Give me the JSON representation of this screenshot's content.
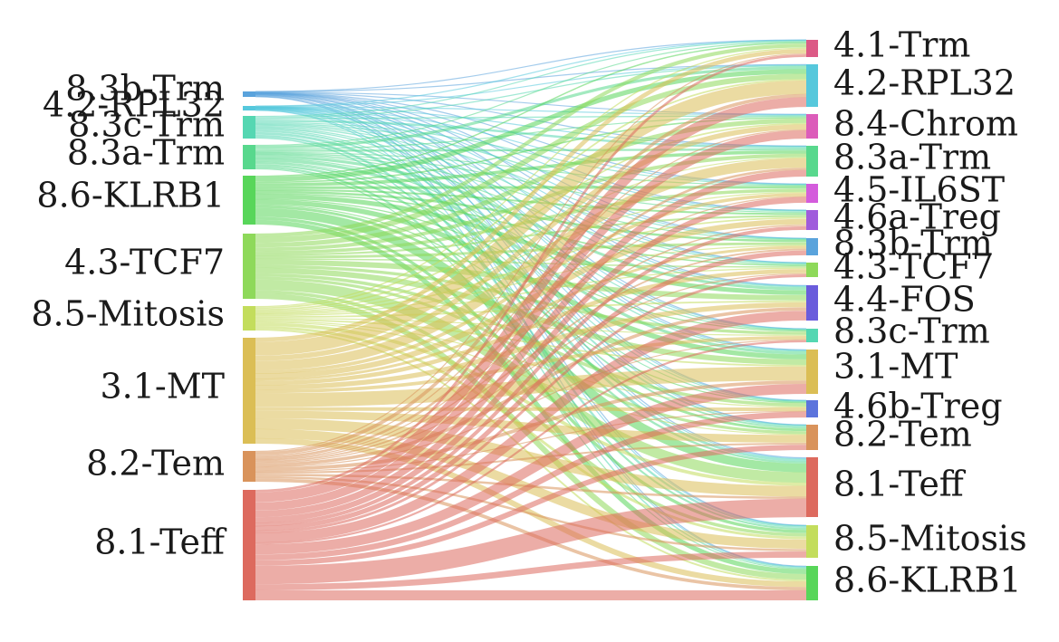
{
  "diagram": {
    "type": "sankey",
    "left_nodes": [
      {
        "id": "L-8.3b-Trm",
        "label": "8.3b-Trm",
        "color": "#5aa3dc",
        "weight": 4
      },
      {
        "id": "L-4.2-RPL32",
        "label": "4.2-RPL32",
        "color": "#56c8dc",
        "weight": 3
      },
      {
        "id": "L-8.3c-Trm",
        "label": "8.3c-Trm",
        "color": "#55d7b2",
        "weight": 12
      },
      {
        "id": "L-8.3a-Trm",
        "label": "8.3a-Trm",
        "color": "#58d88d",
        "weight": 14
      },
      {
        "id": "L-8.6-KLRB1",
        "label": "8.6-KLRB1",
        "color": "#58d65a",
        "weight": 30
      },
      {
        "id": "L-4.3-TCF7",
        "label": "4.3-TCF7",
        "color": "#8ed95a",
        "weight": 40
      },
      {
        "id": "L-8.5-Mitosis",
        "label": "8.5-Mitosis",
        "color": "#c3dd5c",
        "weight": 14
      },
      {
        "id": "L-3.1-MT",
        "label": "3.1-MT",
        "color": "#dbbe55",
        "weight": 65
      },
      {
        "id": "L-8.2-Tem",
        "label": "8.2-Tem",
        "color": "#d9935b",
        "weight": 18
      },
      {
        "id": "L-8.1-Teff",
        "label": "8.1-Teff",
        "color": "#dd6a5e",
        "weight": 67
      }
    ],
    "right_nodes": [
      {
        "id": "R-4.1-Trm",
        "label": "4.1-Trm",
        "color": "#dc5a86",
        "weight": 10
      },
      {
        "id": "R-4.2-RPL32",
        "label": "4.2-RPL32",
        "color": "#56c8dc",
        "weight": 24
      },
      {
        "id": "R-8.4-Chrom",
        "label": "8.4-Chrom",
        "color": "#dc5cba",
        "weight": 14
      },
      {
        "id": "R-8.3a-Trm",
        "label": "8.3a-Trm",
        "color": "#58d88d",
        "weight": 18
      },
      {
        "id": "R-4.5-IL6ST",
        "label": "4.5-IL6ST",
        "color": "#d45cdc",
        "weight": 10
      },
      {
        "id": "R-4.6a-Treg",
        "label": "4.6a-Treg",
        "color": "#a05cdc",
        "weight": 10
      },
      {
        "id": "R-8.3b-Trm",
        "label": "8.3b-Trm",
        "color": "#5aa3dc",
        "weight": 9
      },
      {
        "id": "R-4.3-TCF7",
        "label": "4.3-TCF7",
        "color": "#8ed95a",
        "weight": 9
      },
      {
        "id": "R-4.4-FOS",
        "label": "4.4-FOS",
        "color": "#6a5cdc",
        "weight": 20
      },
      {
        "id": "R-8.3c-Trm",
        "label": "8.3c-Trm",
        "color": "#55d7b2",
        "weight": 8
      },
      {
        "id": "R-3.1-MT",
        "label": "3.1-MT",
        "color": "#dbbe55",
        "weight": 24
      },
      {
        "id": "R-4.6b-Treg",
        "label": "4.6b-Treg",
        "color": "#5c74dc",
        "weight": 10
      },
      {
        "id": "R-8.2-Tem",
        "label": "8.2-Tem",
        "color": "#d9935b",
        "weight": 14
      },
      {
        "id": "R-8.1-Teff",
        "label": "8.1-Teff",
        "color": "#dd6a5e",
        "weight": 34
      },
      {
        "id": "R-8.5-Mitosis",
        "label": "8.5-Mitosis",
        "color": "#c3dd5c",
        "weight": 18
      },
      {
        "id": "R-8.6-KLRB1",
        "label": "8.6-KLRB1",
        "color": "#58d65a",
        "weight": 20
      }
    ]
  }
}
